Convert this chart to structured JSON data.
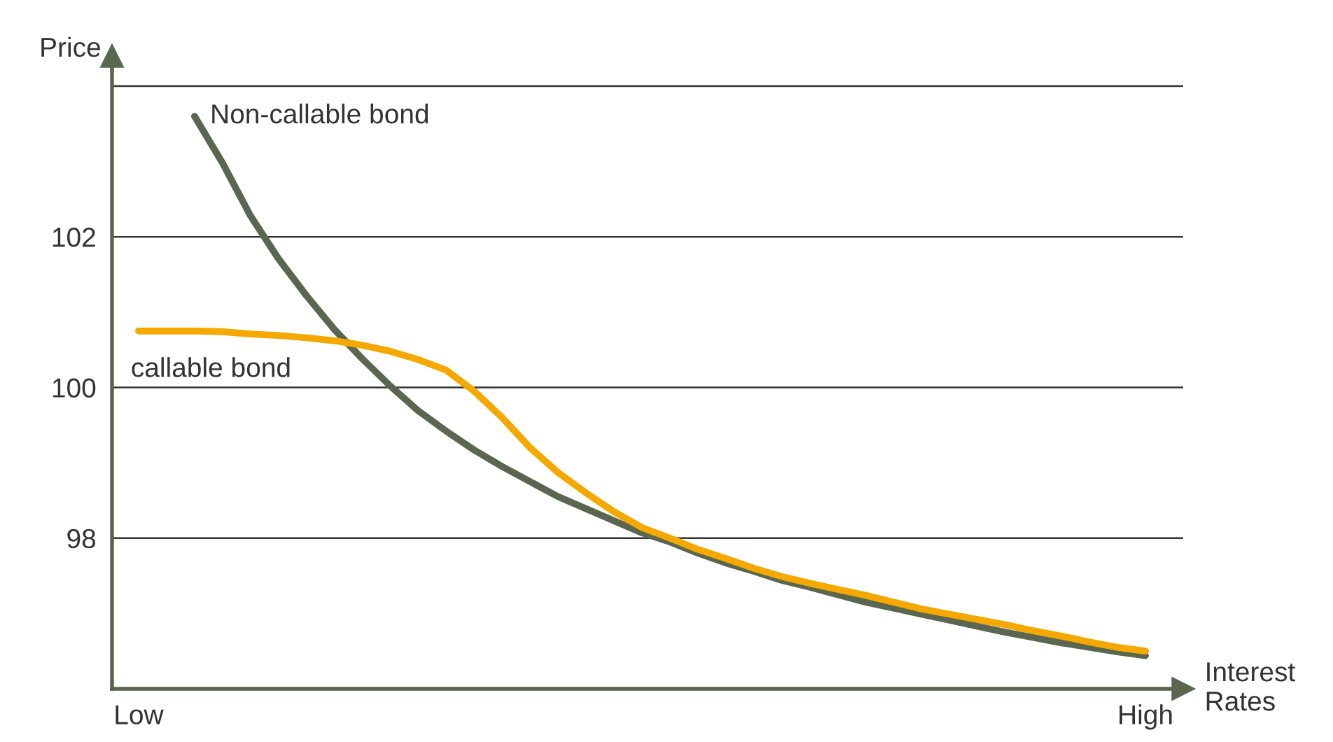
{
  "chart_data": {
    "type": "line",
    "xlabel": "Interest\nRates",
    "ylabel": "Price",
    "categories": [
      "Low",
      null,
      null,
      null,
      null,
      null,
      null,
      null,
      null,
      null,
      null,
      null,
      null,
      null,
      null,
      null,
      null,
      null,
      null,
      null,
      null,
      null,
      null,
      null,
      null,
      null,
      null,
      null,
      null,
      null,
      null,
      null,
      null,
      null,
      null,
      null,
      "High"
    ],
    "ylim": [
      96,
      104.4
    ],
    "yticks": [
      98,
      100,
      102,
      {
        "value": 104,
        "label": null
      }
    ],
    "grid": "y",
    "legend": false,
    "marker": "none",
    "line_style": "solid",
    "series": [
      {
        "name": "Non-callable bond",
        "color": "#5a6650",
        "values": [
          null,
          null,
          103.6,
          102.98,
          102.28,
          101.71,
          101.22,
          100.77,
          100.38,
          100.02,
          99.69,
          99.42,
          99.17,
          98.95,
          98.75,
          98.55,
          98.39,
          98.23,
          98.07,
          97.95,
          97.8,
          97.67,
          97.56,
          97.44,
          97.35,
          97.25,
          97.15,
          97.07,
          96.99,
          96.91,
          96.83,
          96.75,
          96.68,
          96.61,
          96.55,
          96.49,
          96.44
        ]
      },
      {
        "name": "callable bond",
        "color": "#f5a800",
        "values": [
          100.75,
          100.75,
          100.75,
          100.74,
          100.71,
          100.69,
          100.66,
          100.62,
          100.56,
          100.48,
          100.37,
          100.23,
          99.95,
          99.6,
          99.2,
          98.87,
          98.6,
          98.35,
          98.14,
          98.0,
          97.85,
          97.73,
          97.6,
          97.49,
          97.4,
          97.32,
          97.24,
          97.15,
          97.06,
          96.99,
          96.92,
          96.85,
          96.77,
          96.7,
          96.62,
          96.55,
          96.5
        ]
      }
    ]
  }
}
